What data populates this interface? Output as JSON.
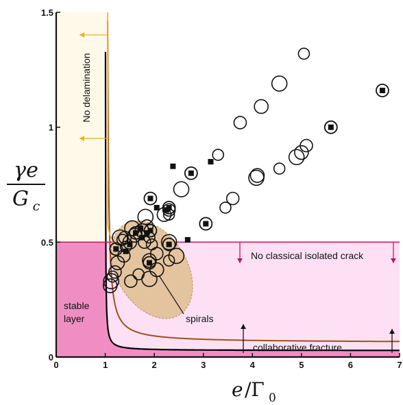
{
  "chart_data": {
    "type": "scatter",
    "xlim": [
      0,
      7
    ],
    "ylim": [
      0,
      1.5
    ],
    "x_ticks": [
      "0",
      "1",
      "2",
      "3",
      "4",
      "5",
      "6",
      "7"
    ],
    "y_ticks": [
      "0",
      "0.5",
      "1",
      "1.5"
    ],
    "xlabel": {
      "var": "e",
      "slash": "/Γ",
      "sub": "0"
    },
    "ylabel": {
      "numerator": "γe",
      "denominator": "G",
      "denominator_sub": "c"
    },
    "colors": {
      "stable_region": "#f08ec3",
      "no_classical_region": "#fde0f4",
      "no_delamination_region": "#fff9e9",
      "magenta_line": "#cc1a72",
      "orange_curve": "#f2ac2a",
      "brown_curve": "#9a5218",
      "black_curve": "#000000",
      "spiral_ellipse": "#e3c39a",
      "arrow_orange": "#f2ac2a",
      "arrow_magenta": "#b01f66"
    },
    "series": [
      {
        "marker": "open-circle",
        "points": [
          [
            5.05,
            1.32
          ],
          [
            4.55,
            1.19
          ],
          [
            4.18,
            1.09
          ],
          [
            3.75,
            1.02
          ],
          [
            3.3,
            0.88
          ],
          [
            4.9,
            0.87
          ],
          [
            5.0,
            0.89
          ],
          [
            5.1,
            0.92
          ],
          [
            4.55,
            0.82
          ],
          [
            4.08,
            0.78
          ],
          [
            4.1,
            0.79
          ],
          [
            3.6,
            0.69
          ],
          [
            3.45,
            0.65
          ],
          [
            2.55,
            0.73
          ],
          [
            2.2,
            0.62
          ],
          [
            2.3,
            0.64
          ],
          [
            2.3,
            0.62
          ],
          [
            1.82,
            0.61
          ],
          [
            1.75,
            0.55
          ],
          [
            1.85,
            0.57
          ],
          [
            1.9,
            0.52
          ],
          [
            1.55,
            0.56
          ],
          [
            1.6,
            0.53
          ],
          [
            1.4,
            0.52
          ],
          [
            1.35,
            0.51
          ],
          [
            1.3,
            0.52
          ],
          [
            1.5,
            0.5
          ],
          [
            1.8,
            0.5
          ],
          [
            1.95,
            0.49
          ],
          [
            2.3,
            0.5
          ],
          [
            1.25,
            0.41
          ],
          [
            1.2,
            0.37
          ],
          [
            1.15,
            0.35
          ],
          [
            1.12,
            0.33
          ],
          [
            1.1,
            0.31
          ],
          [
            1.52,
            0.33
          ],
          [
            1.68,
            0.36
          ],
          [
            1.9,
            0.34
          ],
          [
            2.05,
            0.38
          ],
          [
            2.05,
            0.45
          ],
          [
            2.3,
            0.42
          ],
          [
            2.45,
            0.44
          ],
          [
            1.9,
            0.42
          ],
          [
            1.38,
            0.44
          ],
          [
            1.42,
            0.48
          ]
        ]
      },
      {
        "marker": "filled-square",
        "points": [
          [
            2.38,
            0.83
          ],
          [
            3.15,
            0.85
          ],
          [
            2.05,
            0.65
          ],
          [
            1.72,
            0.56
          ],
          [
            2.68,
            0.51
          ],
          [
            1.42,
            0.46
          ],
          [
            1.5,
            0.49
          ],
          [
            1.85,
            0.54
          ],
          [
            2.25,
            0.64
          ],
          [
            1.75,
            0.52
          ]
        ]
      },
      {
        "marker": "square-in-circle",
        "points": [
          [
            6.65,
            1.16
          ],
          [
            5.6,
            1.0
          ],
          [
            2.75,
            0.8
          ],
          [
            1.92,
            0.69
          ],
          [
            3.05,
            0.58
          ],
          [
            2.3,
            0.65
          ],
          [
            1.92,
            0.55
          ],
          [
            1.22,
            0.47
          ],
          [
            1.62,
            0.54
          ],
          [
            2.3,
            0.49
          ],
          [
            1.9,
            0.41
          ]
        ]
      }
    ],
    "spiral_region": {
      "center": [
        1.95,
        0.38
      ],
      "rx": 0.72,
      "ry": 0.1,
      "angle_deg": 31
    },
    "annotations": {
      "no_delamination": "No delamination",
      "no_classical": "No classical isolated crack",
      "stable_layer_1": "stable",
      "stable_layer_2": "layer",
      "spirals": "spirals",
      "collaborative": "collaborative fracture"
    }
  }
}
